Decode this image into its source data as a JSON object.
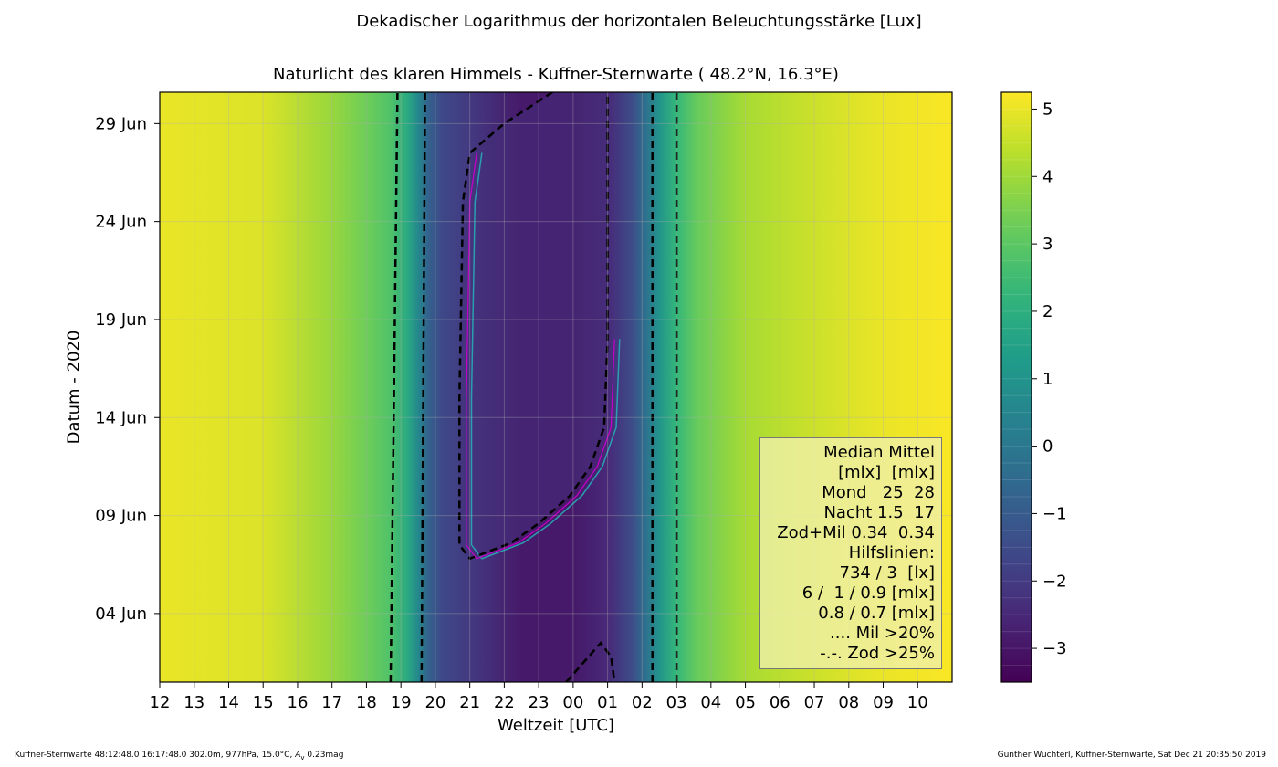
{
  "suptitle": "Dekadischer Logarithmus der horizontalen Beleuchtungsstärke [Lux]",
  "footer": {
    "left": "Kuffner-Sternwarte 48:12:48.0 16:17:48.0 302.0m,  977hPa, 15.0°C, A_v 0.23mag",
    "right": "Günther Wuchterl, Kuffner-Sternwarte, Sat Dec 21 20:35:50 2019"
  },
  "legend_lines": [
    "Median Mittel",
    "[mlx]  [mlx]",
    "Mond   25  28",
    "Nacht 1.5  17",
    "Zod+Mil 0.34  0.34",
    "Hilfslinien:",
    "734 / 3  [lx]",
    "6 /  1 / 0.9 [mlx]",
    "0.8 / 0.7 [mlx]",
    ".... Mil >20%",
    "-.-. Zod >25%"
  ],
  "colors": {
    "day": "#f2e52b",
    "night": "#46307a",
    "contour": "#000000",
    "moon_line": "#2a9fb0",
    "magenta_line": "#c800c8"
  },
  "chart_data": {
    "type": "heatmap",
    "title": "Naturlicht des klaren Himmels - Kuffner-Sternwarte ( 48.2°N, 16.3°E)",
    "xlabel": "Weltzeit [UTC]",
    "ylabel": "Datum - 2020",
    "x_ticks": [
      "12",
      "13",
      "14",
      "15",
      "16",
      "17",
      "18",
      "19",
      "20",
      "21",
      "22",
      "23",
      "00",
      "01",
      "02",
      "03",
      "04",
      "05",
      "06",
      "07",
      "08",
      "09",
      "10"
    ],
    "xlim_hours": [
      12,
      35
    ],
    "y_ticks": [
      "04 Jun",
      "09 Jun",
      "14 Jun",
      "19 Jun",
      "24 Jun",
      "29 Jun"
    ],
    "ylim_days": [
      0.5,
      30.6
    ],
    "y_tick_days": [
      4,
      9,
      14,
      19,
      24,
      29
    ],
    "colorbar": {
      "ticks": [
        -3,
        -2,
        -1,
        0,
        1,
        2,
        3,
        4,
        5
      ],
      "range": [
        -3.5,
        5.25
      ],
      "colormap": "viridis"
    },
    "log_lux_profile_vs_utc": [
      {
        "utc": 12.0,
        "v": 5.0
      },
      {
        "utc": 15.0,
        "v": 4.8
      },
      {
        "utc": 17.0,
        "v": 3.9
      },
      {
        "utc": 18.0,
        "v": 3.3
      },
      {
        "utc": 18.7,
        "v": 2.8
      },
      {
        "utc": 19.2,
        "v": 1.8
      },
      {
        "utc": 19.5,
        "v": 0.6
      },
      {
        "utc": 19.8,
        "v": -0.8
      },
      {
        "utc": 20.2,
        "v": -1.6
      },
      {
        "utc": 21.0,
        "v": -2.0
      },
      {
        "utc": 22.5,
        "v": -2.9
      },
      {
        "utc": 24.0,
        "v": -2.9
      },
      {
        "utc": 25.0,
        "v": -2.5
      },
      {
        "utc": 25.7,
        "v": -1.5
      },
      {
        "utc": 26.1,
        "v": -0.3
      },
      {
        "utc": 26.5,
        "v": 1.0
      },
      {
        "utc": 27.0,
        "v": 2.3
      },
      {
        "utc": 27.6,
        "v": 3.2
      },
      {
        "utc": 29.0,
        "v": 4.1
      },
      {
        "utc": 31.0,
        "v": 4.6
      },
      {
        "utc": 33.0,
        "v": 5.0
      },
      {
        "utc": 35.0,
        "v": 5.2
      }
    ],
    "contours": {
      "outer_left_utc": [
        {
          "day": 0.5,
          "utc": 18.7
        },
        {
          "day": 30.6,
          "utc": 18.9
        }
      ],
      "inner_left_utc": [
        {
          "day": 0.5,
          "utc": 19.6
        },
        {
          "day": 30.6,
          "utc": 19.7
        }
      ],
      "inner_right_utc": [
        {
          "day": 0.5,
          "utc": 26.3
        },
        {
          "day": 30.6,
          "utc": 26.3
        }
      ],
      "outer_right_utc": [
        {
          "day": 0.5,
          "utc": 27.0
        },
        {
          "day": 30.6,
          "utc": 27.0
        }
      ],
      "moon_region": [
        {
          "day": 30.6,
          "utc": 23.4
        },
        {
          "day": 29.0,
          "utc": 22.0
        },
        {
          "day": 27.5,
          "utc": 21.0
        },
        {
          "day": 25.0,
          "utc": 20.8
        },
        {
          "day": 15.0,
          "utc": 20.7
        },
        {
          "day": 7.5,
          "utc": 20.7
        },
        {
          "day": 6.8,
          "utc": 21.0
        },
        {
          "day": 7.6,
          "utc": 22.2
        },
        {
          "day": 8.6,
          "utc": 23.0
        },
        {
          "day": 10.0,
          "utc": 23.9
        },
        {
          "day": 11.5,
          "utc": 24.5
        },
        {
          "day": 13.5,
          "utc": 24.9
        },
        {
          "day": 18.0,
          "utc": 25.0
        },
        {
          "day": 25.0,
          "utc": 25.0
        },
        {
          "day": 30.6,
          "utc": 25.0
        }
      ],
      "bottom_dip": [
        {
          "day": 0.5,
          "utc": 23.8
        },
        {
          "day": 2.5,
          "utc": 24.8
        },
        {
          "day": 1.8,
          "utc": 25.1
        },
        {
          "day": 0.5,
          "utc": 25.2
        }
      ]
    }
  }
}
